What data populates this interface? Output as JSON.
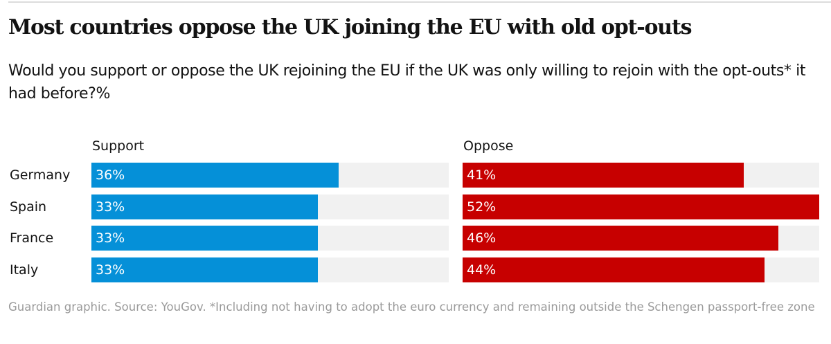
{
  "title": "Most countries oppose the UK joining the EU with old opt-outs",
  "subtitle": "Would you support or oppose the UK rejoining the EU if the UK was only willing to rejoin with the opt-outs* it had before?%",
  "footer": "Guardian graphic. Source: YouGov. *Including not having to adopt the euro currency and remaining outside the Schengen passport-free zone",
  "chart_data": {
    "type": "bar",
    "orientation": "horizontal",
    "categories": [
      "Germany",
      "Spain",
      "France",
      "Italy"
    ],
    "series": [
      {
        "name": "Support",
        "values": [
          36,
          33,
          33,
          33
        ],
        "labels": [
          "36%",
          "33%",
          "33%",
          "33%"
        ],
        "color": "#0590d8"
      },
      {
        "name": "Oppose",
        "values": [
          41,
          52,
          46,
          44
        ],
        "labels": [
          "41%",
          "52%",
          "46%",
          "44%"
        ],
        "color": "#c70000"
      }
    ],
    "xlim": [
      0,
      52
    ],
    "track_color": "#f1f1f1",
    "grid": false
  }
}
